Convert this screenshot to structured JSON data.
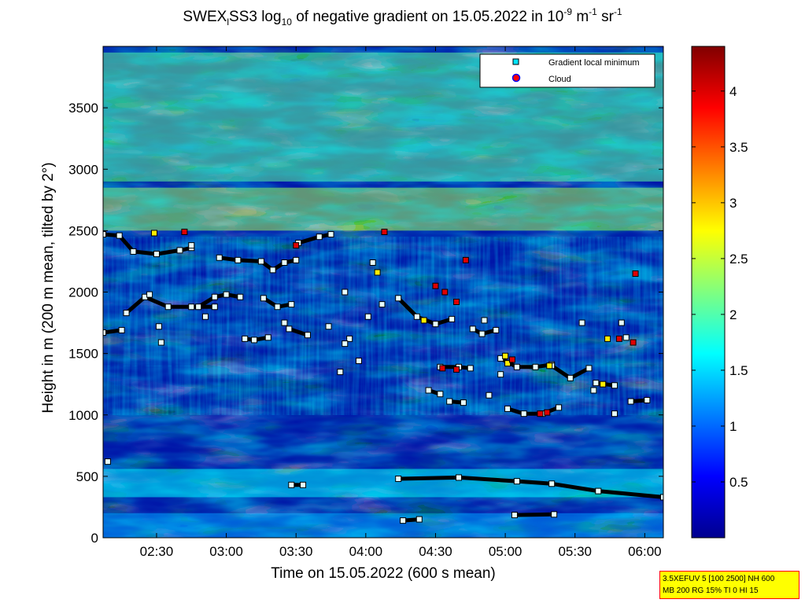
{
  "title": {
    "p1": "SWEX",
    "sub1": "l",
    "p2": "SS3 log",
    "sub2": "10",
    "p3": " of negative gradient on 15.05.2022 in 10",
    "sup1": "-9",
    "p4": " m",
    "sup2": "-1",
    "p5": " sr",
    "sup3": "-1"
  },
  "info_box": {
    "line1": "3.5XEFUV 5 [100 2500] NH 600",
    "line2": "MB 200 RG 15% TI 0 HI 15",
    "background": "#ffff00",
    "border": "#ff0000"
  },
  "chart_data": {
    "type": "heatmap",
    "xlabel": "Time on 15.05.2022 (600 s mean)",
    "ylabel": "Height in m (200 m mean, tilted by 2°)",
    "x_tick_labels": [
      "02:30",
      "03:00",
      "03:30",
      "04:00",
      "04:30",
      "05:00",
      "05:30",
      "06:00"
    ],
    "x_tick_minutes": [
      150,
      180,
      210,
      240,
      270,
      300,
      330,
      360
    ],
    "xlim_minutes": [
      127,
      368
    ],
    "y_ticks": [
      0,
      500,
      1000,
      1500,
      2000,
      2500,
      3000,
      3500
    ],
    "ylim": [
      0,
      4000
    ],
    "colorbar": {
      "ticks": [
        0.5,
        1,
        1.5,
        2,
        2.5,
        3,
        3.5,
        4
      ],
      "range": [
        0,
        4.4
      ],
      "colormap": "jet"
    },
    "legend": {
      "position": "top-right",
      "entries": [
        {
          "label": "Gradient local minimum",
          "marker": "square",
          "color": "#00e5ff"
        },
        {
          "label": "Cloud",
          "marker": "circle",
          "color": "#ff0000",
          "edge": "#0000ff"
        }
      ]
    },
    "field_layers": [
      {
        "name": "top-patchy",
        "y_range": [
          2900,
          3950
        ],
        "level": 2.1
      },
      {
        "name": "mid-band",
        "y_range": [
          2500,
          2850
        ],
        "level": 2.4
      },
      {
        "name": "lower-structures",
        "y_range": [
          1400,
          2450
        ],
        "level": 1.4
      },
      {
        "name": "cloud-streaks",
        "y_range": [
          1000,
          1400
        ],
        "level": 1.3
      },
      {
        "name": "boundary-layer",
        "y_range": [
          330,
          560
        ],
        "level": 1.6
      },
      {
        "name": "surface-band",
        "y_range": [
          0,
          200
        ],
        "level": 1.2
      }
    ],
    "gradient_minima_lines": [
      {
        "x": [
          127,
          134,
          140,
          150,
          160,
          165
        ],
        "y": [
          2470,
          2460,
          2330,
          2310,
          2340,
          2360
        ]
      },
      {
        "x": [
          137,
          145,
          155,
          165,
          175
        ],
        "y": [
          1830,
          1960,
          1880,
          1880,
          1880
        ]
      },
      {
        "x": [
          127,
          135
        ],
        "y": [
          1670,
          1690
        ]
      },
      {
        "x": [
          168,
          175,
          180,
          186
        ],
        "y": [
          1880,
          1960,
          1980,
          1960
        ]
      },
      {
        "x": [
          177,
          185,
          195,
          200,
          205,
          210
        ],
        "y": [
          2280,
          2260,
          2250,
          2180,
          2240,
          2260
        ]
      },
      {
        "x": [
          188,
          192,
          198
        ],
        "y": [
          1620,
          1610,
          1630
        ]
      },
      {
        "x": [
          196,
          202,
          208
        ],
        "y": [
          1950,
          1880,
          1900
        ]
      },
      {
        "x": [
          211,
          220,
          225
        ],
        "y": [
          2400,
          2450,
          2470
        ]
      },
      {
        "x": [
          207,
          215
        ],
        "y": [
          1700,
          1650
        ]
      },
      {
        "x": [
          254,
          262,
          270,
          277
        ],
        "y": [
          1950,
          1800,
          1740,
          1780
        ]
      },
      {
        "x": [
          272,
          280,
          285
        ],
        "y": [
          1390,
          1390,
          1380
        ]
      },
      {
        "x": [
          267,
          272
        ],
        "y": [
          1200,
          1170
        ]
      },
      {
        "x": [
          276,
          282
        ],
        "y": [
          1110,
          1100
        ]
      },
      {
        "x": [
          286,
          290,
          296
        ],
        "y": [
          1700,
          1660,
          1690
        ]
      },
      {
        "x": [
          298,
          305,
          313,
          320
        ],
        "y": [
          1460,
          1390,
          1390,
          1410
        ]
      },
      {
        "x": [
          301,
          308,
          316,
          323
        ],
        "y": [
          1050,
          1010,
          1010,
          1060
        ]
      },
      {
        "x": [
          320,
          328,
          336
        ],
        "y": [
          1400,
          1300,
          1380
        ]
      },
      {
        "x": [
          339,
          347
        ],
        "y": [
          1260,
          1240
        ]
      },
      {
        "x": [
          354,
          361
        ],
        "y": [
          1110,
          1120
        ]
      },
      {
        "x": [
          254,
          280,
          305,
          320,
          340,
          368
        ],
        "y": [
          480,
          490,
          460,
          440,
          380,
          330
        ]
      },
      {
        "x": [
          208,
          213
        ],
        "y": [
          430,
          430
        ]
      },
      {
        "x": [
          256,
          263
        ],
        "y": [
          140,
          150
        ]
      },
      {
        "x": [
          304,
          321
        ],
        "y": [
          185,
          190
        ]
      }
    ],
    "cloud_points": [
      {
        "x": 162,
        "y": 2490
      },
      {
        "x": 210,
        "y": 2380
      },
      {
        "x": 248,
        "y": 2490
      },
      {
        "x": 270,
        "y": 2050
      },
      {
        "x": 274,
        "y": 2000
      },
      {
        "x": 279,
        "y": 1920
      },
      {
        "x": 283,
        "y": 2260
      },
      {
        "x": 273,
        "y": 1380
      },
      {
        "x": 279,
        "y": 1370
      },
      {
        "x": 303,
        "y": 1450
      },
      {
        "x": 315,
        "y": 1010
      },
      {
        "x": 318,
        "y": 1020
      },
      {
        "x": 349,
        "y": 1620
      },
      {
        "x": 355,
        "y": 1590
      },
      {
        "x": 356,
        "y": 2150
      }
    ],
    "yellow_points": [
      {
        "x": 149,
        "y": 2480
      },
      {
        "x": 245,
        "y": 2160
      },
      {
        "x": 265,
        "y": 1770
      },
      {
        "x": 300,
        "y": 1480
      },
      {
        "x": 301,
        "y": 1420
      },
      {
        "x": 319,
        "y": 1400
      },
      {
        "x": 342,
        "y": 1250
      },
      {
        "x": 344,
        "y": 1620
      }
    ],
    "scattered_minima": [
      {
        "x": 129,
        "y": 620
      },
      {
        "x": 152,
        "y": 1590
      },
      {
        "x": 147,
        "y": 1980
      },
      {
        "x": 151,
        "y": 1720
      },
      {
        "x": 165,
        "y": 2380
      },
      {
        "x": 171,
        "y": 1800
      },
      {
        "x": 205,
        "y": 1750
      },
      {
        "x": 231,
        "y": 2000
      },
      {
        "x": 233,
        "y": 1620
      },
      {
        "x": 237,
        "y": 1440
      },
      {
        "x": 241,
        "y": 1800
      },
      {
        "x": 243,
        "y": 2240
      },
      {
        "x": 247,
        "y": 1900
      },
      {
        "x": 229,
        "y": 1350
      },
      {
        "x": 231,
        "y": 1580
      },
      {
        "x": 291,
        "y": 1770
      },
      {
        "x": 298,
        "y": 1330
      },
      {
        "x": 293,
        "y": 1160
      },
      {
        "x": 333,
        "y": 1750
      },
      {
        "x": 338,
        "y": 1200
      },
      {
        "x": 347,
        "y": 1010
      },
      {
        "x": 350,
        "y": 1750
      },
      {
        "x": 352,
        "y": 1630
      },
      {
        "x": 224,
        "y": 1720
      }
    ]
  }
}
